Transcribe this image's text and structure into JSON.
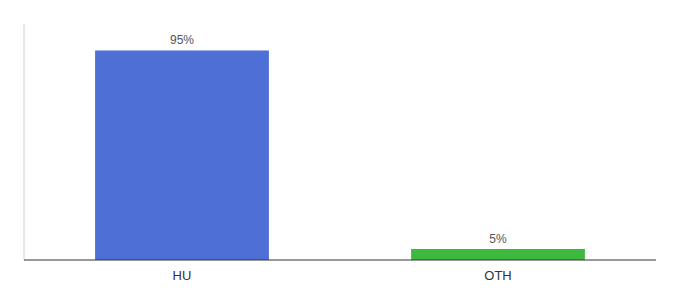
{
  "chart_data": {
    "type": "bar",
    "categories": [
      "HU",
      "OTH"
    ],
    "values": [
      95,
      5
    ],
    "value_labels": [
      "95%",
      "5%"
    ],
    "colors": [
      "#4d6fd6",
      "#3dba3d"
    ],
    "ylim": [
      0,
      107
    ],
    "data_labels": true,
    "tick_labels": "x"
  }
}
